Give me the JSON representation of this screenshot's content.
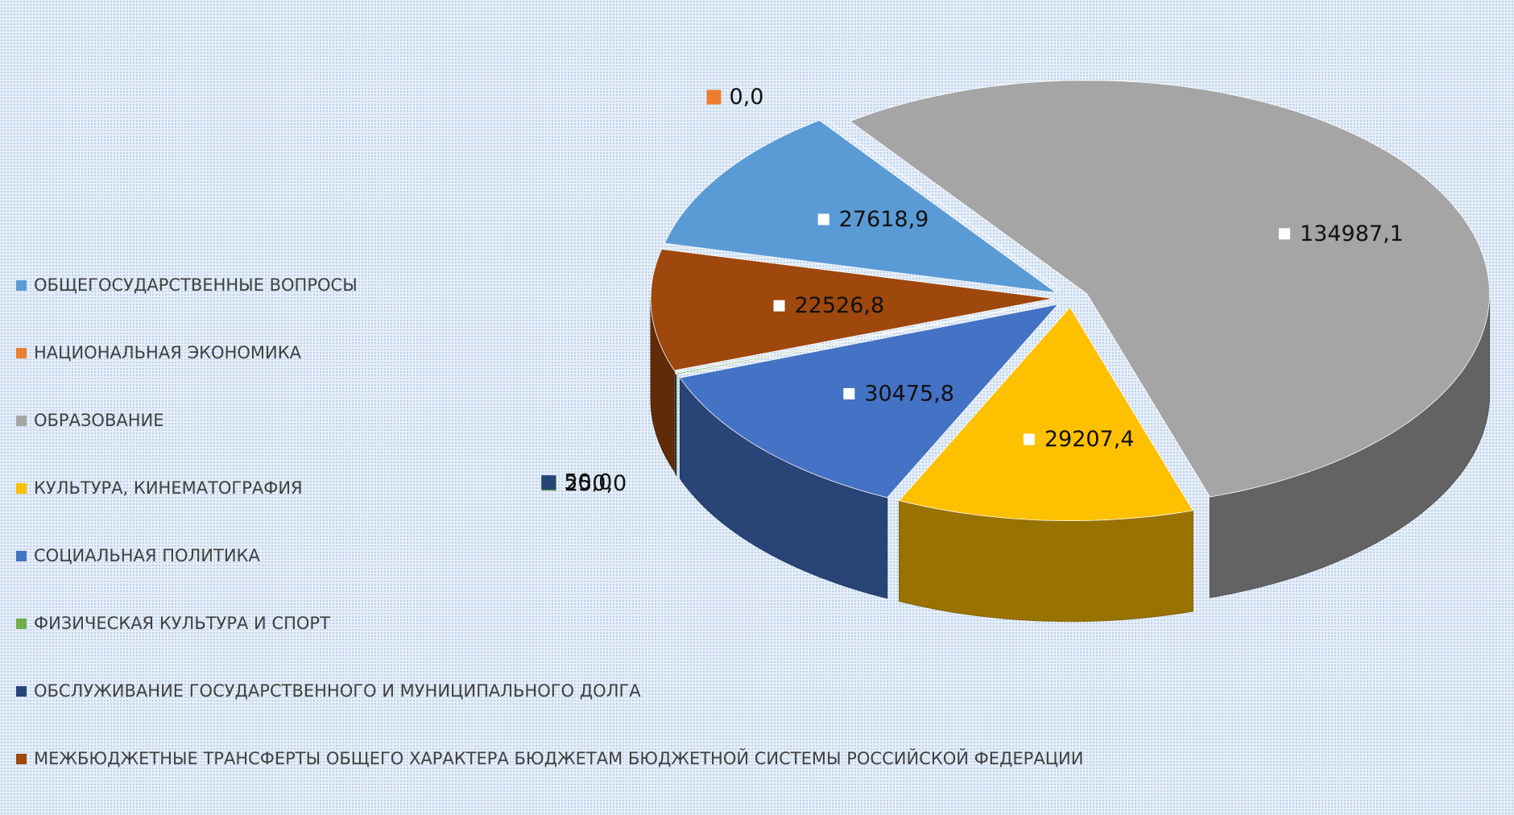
{
  "chart_data": {
    "type": "pie3d",
    "categories": [
      "ОБЩЕГОСУДАРСТВЕННЫЕ ВОПРОСЫ",
      "НАЦИОНАЛЬНАЯ ЭКОНОМИКА",
      "ОБРАЗОВАНИЕ",
      "КУЛЬТУРА, КИНЕМАТОГРАФИЯ",
      "СОЦИАЛЬНАЯ ПОЛИТИКА",
      "ФИЗИЧЕСКАЯ КУЛЬТУРА И СПОРТ",
      "ОБСЛУЖИВАНИЕ ГОСУДАРСТВЕННОГО И МУНИЦИПАЛЬНОГО ДОЛГА",
      "МЕЖБЮДЖЕТНЫЕ ТРАНСФЕРТЫ ОБЩЕГО ХАРАКТЕРА БЮДЖЕТАМ БЮДЖЕТНОЙ СИСТЕМЫ РОССИЙСКОЙ ФЕДЕРАЦИИ"
    ],
    "values": [
      27618.9,
      0.0,
      134987.1,
      29207.4,
      30475.8,
      250.0,
      50.0,
      22526.8
    ],
    "value_labels": [
      "27618,9",
      "0,0",
      "134987,1",
      "29207,4",
      "30475,8",
      "250,0",
      "50,0",
      "22526,8"
    ],
    "colors": [
      "#5b9bd5",
      "#ed7d31",
      "#a5a5a5",
      "#ffc000",
      "#4472c4",
      "#70ad47",
      "#264478",
      "#9e480e"
    ],
    "legend": "left"
  }
}
